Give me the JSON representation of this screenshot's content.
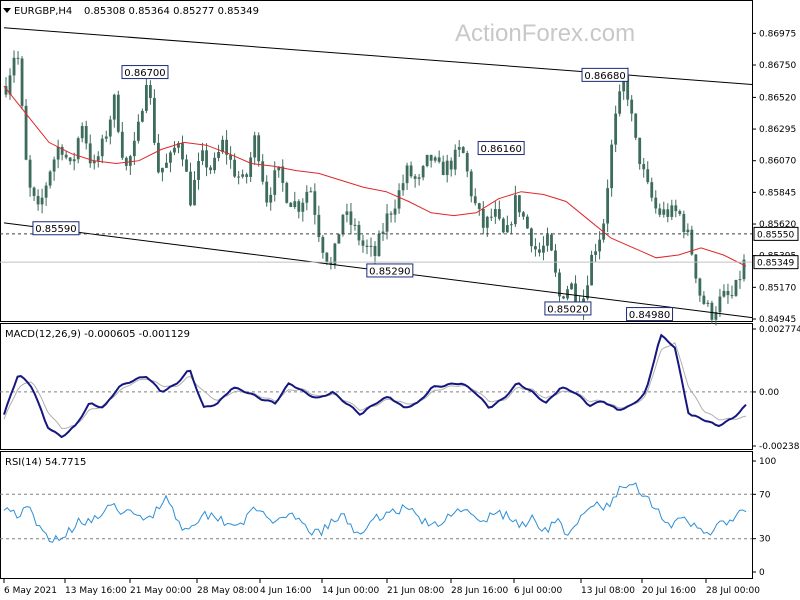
{
  "watermark": "ActionForex.com",
  "header": {
    "symbol": "EURGBP,H4",
    "ohlc": "0.85308 0.85364 0.85277 0.85349"
  },
  "colors": {
    "candles": "#3d6b5c",
    "ma": "#e0262b",
    "channel": "#000000",
    "hline": "#404040",
    "price_box": "#ffffff",
    "macd_main": "#161680",
    "macd_signal": "#b0b0b0",
    "rsi": "#2e8fd6",
    "levels": "#808080"
  },
  "chart_data": [
    {
      "type": "candlestick",
      "panel": "price",
      "ylim": [
        0.84945,
        0.8707
      ],
      "yticks": [
        "0.86975",
        "0.86750",
        "0.86520",
        "0.86295",
        "0.86070",
        "0.85845",
        "0.85620",
        "0.85395",
        "0.85170",
        "0.84945"
      ],
      "xticks": [
        "6 May 2021",
        "13 May 16:00",
        "21 May 00:00",
        "28 May 08:00",
        "4 Jun 16:00",
        "14 Jun 00:00",
        "21 Jun 08:00",
        "28 Jun 16:00",
        "6 Jul 00:00",
        "13 Jul 08:00",
        "20 Jul 16:00",
        "28 Jul 00:00"
      ],
      "close_path": [
        0.866,
        0.869,
        0.859,
        0.857,
        0.86,
        0.862,
        0.86,
        0.8635,
        0.86,
        0.862,
        0.865,
        0.86,
        0.862,
        0.867,
        0.86,
        0.8605,
        0.8625,
        0.858,
        0.861,
        0.86,
        0.862,
        0.86,
        0.859,
        0.8625,
        0.858,
        0.86,
        0.858,
        0.8575,
        0.859,
        0.855,
        0.853,
        0.857,
        0.856,
        0.8545,
        0.854,
        0.8565,
        0.858,
        0.86,
        0.859,
        0.861,
        0.86,
        0.8605,
        0.8616,
        0.858,
        0.856,
        0.857,
        0.855,
        0.858,
        0.856,
        0.854,
        0.855,
        0.851,
        0.852,
        0.8502,
        0.854,
        0.856,
        0.863,
        0.8668,
        0.862,
        0.859,
        0.857,
        0.857,
        0.857,
        0.855,
        0.851,
        0.8498,
        0.851,
        0.851,
        0.8534
      ],
      "moving_average": [
        0.866,
        0.864,
        0.862,
        0.8612,
        0.8607,
        0.8605,
        0.8607,
        0.8615,
        0.862,
        0.8618,
        0.8612,
        0.8605,
        0.8603,
        0.86,
        0.8598,
        0.8593,
        0.8588,
        0.8585,
        0.8578,
        0.857,
        0.8568,
        0.857,
        0.858,
        0.8585,
        0.8583,
        0.8578,
        0.8565,
        0.8552,
        0.8545,
        0.8538,
        0.854,
        0.8545,
        0.854,
        0.8532
      ],
      "channel_upper": [
        {
          "x": 0,
          "y": 0.87015
        },
        {
          "x": 1,
          "y": 0.86612
        }
      ],
      "channel_lower": [
        {
          "x": 0,
          "y": 0.85628
        },
        {
          "x": 1,
          "y": 0.84955
        }
      ],
      "hline": 0.8555,
      "current_price": 0.85349,
      "annotations": [
        {
          "label": "0.86700",
          "x": 0.19,
          "y": 0.867
        },
        {
          "label": "0.85590",
          "x": 0.07,
          "y": 0.8559
        },
        {
          "label": "0.85290",
          "x": 0.52,
          "y": 0.8529
        },
        {
          "label": "0.86160",
          "x": 0.67,
          "y": 0.8616
        },
        {
          "label": "0.85020",
          "x": 0.76,
          "y": 0.8502
        },
        {
          "label": "0.86680",
          "x": 0.81,
          "y": 0.8668
        },
        {
          "label": "0.84980",
          "x": 0.87,
          "y": 0.8498
        }
      ],
      "price_labels": {
        "hline": "0.85550",
        "current": "0.85349"
      }
    },
    {
      "type": "line",
      "panel": "macd",
      "label": "MACD(12,26,9) -0.000605 -0.001129",
      "yticks": [
        "0.002774",
        "0.00",
        "-0.002383"
      ],
      "ylim": [
        -0.002383,
        0.002774
      ],
      "series": [
        {
          "values": [
            -0.001,
            0.0008,
            0.0002,
            -0.0015,
            -0.002,
            -0.0015,
            -0.0005,
            -0.0007,
            0.0002,
            0.0005,
            0.0007,
            0.0,
            0.0003,
            0.001,
            -0.0007,
            -0.0005,
            0.0002,
            0.0,
            -0.0003,
            -0.0005,
            0.0004,
            0.0,
            -0.0003,
            0.0,
            -0.0005,
            -0.001,
            -0.0005,
            -0.0002,
            -0.0007,
            -0.0005,
            0.0002,
            0.0003,
            0.0004,
            0.0,
            -0.0007,
            -0.0003,
            0.0004,
            0.0,
            -0.0005,
            0.0002,
            0.0,
            -0.0006,
            -0.0004,
            -0.0008,
            -0.0006,
            0.0,
            0.0025,
            0.002,
            -0.001,
            -0.0012,
            -0.0015,
            -0.0012,
            -0.0006
          ]
        },
        {
          "values": [
            -0.0012,
            0.0002,
            0.0005,
            -0.0008,
            -0.0016,
            -0.0015,
            -0.0008,
            -0.0006,
            0.0,
            0.0004,
            0.0006,
            0.0003,
            0.0002,
            0.0007,
            0.0,
            -0.0004,
            0.0,
            0.0,
            -0.0002,
            -0.0004,
            0.0001,
            0.0001,
            -0.0002,
            -0.0001,
            -0.0004,
            -0.0008,
            -0.0006,
            -0.0003,
            -0.0005,
            -0.0005,
            0.0,
            0.0002,
            0.0003,
            0.0001,
            -0.0004,
            -0.0004,
            0.0002,
            0.0001,
            -0.0003,
            0.0,
            0.0,
            -0.0004,
            -0.0004,
            -0.0007,
            -0.0006,
            -0.0002,
            0.0018,
            0.0022,
            0.0002,
            -0.0008,
            -0.0012,
            -0.0012,
            -0.0011
          ]
        }
      ]
    },
    {
      "type": "line",
      "panel": "rsi",
      "label": "RSI(14) 54.7715",
      "yticks": [
        "100",
        "70",
        "30",
        "0"
      ],
      "ylim": [
        0,
        100
      ],
      "levels": [
        70,
        30
      ],
      "values": [
        60,
        52,
        56,
        35,
        30,
        34,
        48,
        45,
        55,
        58,
        52,
        48,
        54,
        70,
        40,
        44,
        52,
        50,
        43,
        46,
        56,
        50,
        44,
        50,
        40,
        34,
        44,
        50,
        36,
        40,
        52,
        55,
        58,
        50,
        40,
        45,
        60,
        52,
        42,
        55,
        50,
        42,
        48,
        38,
        46,
        32,
        50,
        62,
        58,
        74,
        80,
        70,
        55,
        42,
        46,
        40,
        36,
        42,
        48,
        55
      ]
    }
  ]
}
